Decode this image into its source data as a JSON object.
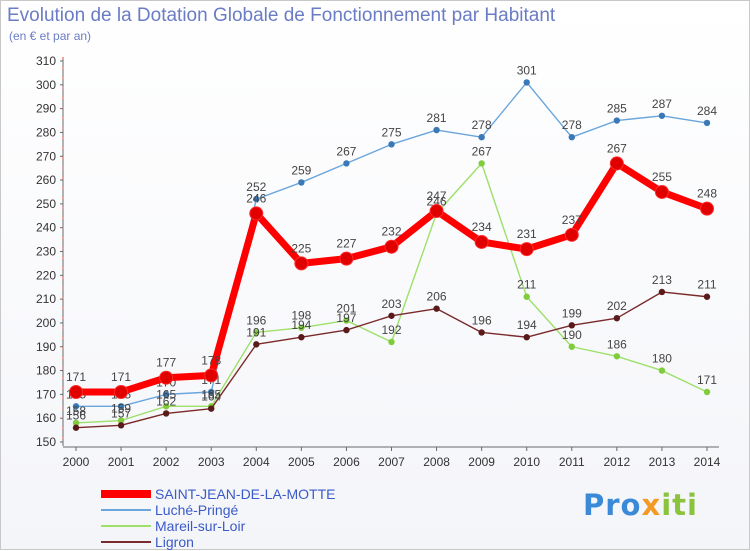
{
  "title": "Evolution de la Dotation Globale de Fonctionnement par Habitant",
  "subtitle": "(en € et par an)",
  "logo": {
    "p1": "Pro",
    "p2": "x",
    "p3": "iti"
  },
  "chart_data": {
    "type": "line",
    "title": "Evolution de la Dotation Globale de Fonctionnement par Habitant",
    "subtitle": "(en € et par an)",
    "x": [
      "2000",
      "2001",
      "2002",
      "2003",
      "2004",
      "2005",
      "2006",
      "2007",
      "2008",
      "2009",
      "2010",
      "2011",
      "2012",
      "2013",
      "2014"
    ],
    "ylim": [
      150,
      310
    ],
    "yticks": [
      150,
      160,
      170,
      180,
      190,
      200,
      210,
      220,
      230,
      240,
      250,
      260,
      270,
      280,
      290,
      300,
      310
    ],
    "grid": false,
    "legend_position": "bottom-left",
    "series": [
      {
        "name": "SAINT-JEAN-DE-LA-MOTTE",
        "color": "#ff0000",
        "marker_color": "#e00000",
        "emphasis": true,
        "values": [
          171,
          171,
          177,
          178,
          246,
          225,
          227,
          232,
          247,
          234,
          231,
          237,
          267,
          255,
          248
        ]
      },
      {
        "name": "Luché-Pringé",
        "color": "#6aa6dc",
        "marker_color": "#3a78b8",
        "emphasis": false,
        "values": [
          165,
          165,
          170,
          171,
          252,
          259,
          267,
          275,
          281,
          278,
          301,
          278,
          285,
          287,
          284
        ]
      },
      {
        "name": "Mareil-sur-Loir",
        "color": "#9ee06a",
        "marker_color": "#7fcc3c",
        "emphasis": false,
        "values": [
          158,
          159,
          165,
          165,
          196,
          198,
          201,
          192,
          246,
          267,
          211,
          190,
          186,
          180,
          171
        ]
      },
      {
        "name": "Ligron",
        "color": "#7a2a2a",
        "marker_color": "#5a1a1a",
        "emphasis": false,
        "values": [
          156,
          157,
          162,
          164,
          191,
          194,
          197,
          203,
          206,
          196,
          194,
          199,
          202,
          213,
          211
        ]
      }
    ]
  }
}
